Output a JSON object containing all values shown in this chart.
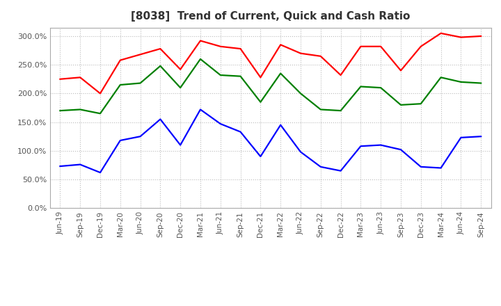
{
  "title": "[8038]  Trend of Current, Quick and Cash Ratio",
  "x_labels": [
    "Jun-19",
    "Sep-19",
    "Dec-19",
    "Mar-20",
    "Jun-20",
    "Sep-20",
    "Dec-20",
    "Mar-21",
    "Jun-21",
    "Sep-21",
    "Dec-21",
    "Mar-22",
    "Jun-22",
    "Sep-22",
    "Dec-22",
    "Mar-23",
    "Jun-23",
    "Sep-23",
    "Dec-23",
    "Mar-24",
    "Jun-24",
    "Sep-24"
  ],
  "current_ratio": [
    225,
    228,
    200,
    258,
    268,
    278,
    242,
    292,
    282,
    278,
    228,
    285,
    270,
    265,
    232,
    282,
    282,
    240,
    282,
    305,
    298,
    300
  ],
  "quick_ratio": [
    170,
    172,
    165,
    215,
    218,
    248,
    210,
    260,
    232,
    230,
    185,
    235,
    200,
    172,
    170,
    212,
    210,
    180,
    182,
    228,
    220,
    218
  ],
  "cash_ratio": [
    73,
    76,
    62,
    118,
    125,
    155,
    110,
    172,
    147,
    133,
    90,
    145,
    98,
    72,
    65,
    108,
    110,
    102,
    72,
    70,
    123,
    125
  ],
  "current_color": "#FF0000",
  "quick_color": "#008000",
  "cash_color": "#0000FF",
  "ylim": [
    0,
    315
  ],
  "yticks": [
    0,
    50,
    100,
    150,
    200,
    250,
    300
  ],
  "background_color": "#FFFFFF",
  "grid_color": "#BBBBBB",
  "title_color": "#333333",
  "tick_color": "#555555"
}
